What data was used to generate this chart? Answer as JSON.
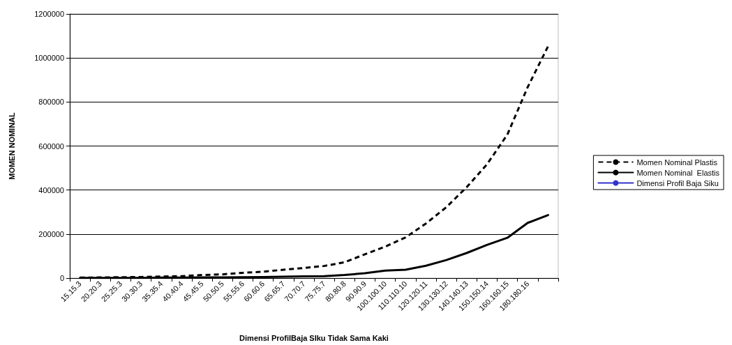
{
  "chart_data": {
    "type": "line",
    "xlabel": "Dimensi ProfilBaja SIku Tidak Sama Kaki",
    "ylabel": "MOMEN NOMINAL",
    "categories": [
      "15.15.3",
      "20.20.3",
      "25.25.3",
      "30.30.3",
      "35.35.4",
      "40.40.4",
      "45.45.5",
      "50.50.5",
      "55.55.6",
      "60.60.6",
      "65.65.7",
      "70.70.7",
      "75.75.7",
      "80.80.8",
      "90.90.9",
      "100.100.10",
      "110.110.10",
      "120.120.11",
      "130.130.12",
      "140.140.13",
      "150.150.14",
      "160.160.15",
      "180.180.16",
      null
    ],
    "series": [
      {
        "name": "Momen Nominal Plastis",
        "color": "#000000",
        "line_style": "dashed",
        "values": [
          2000,
          3000,
          4000,
          5000,
          7000,
          9000,
          14000,
          17000,
          24000,
          29000,
          38000,
          46000,
          55000,
          72000,
          108000,
          143000,
          185000,
          248000,
          322000,
          413000,
          517000,
          652000,
          868000,
          1053000
        ]
      },
      {
        "name": "Momen Nominal  Elastis",
        "color": "#000000",
        "line_style": "solid",
        "values": [
          1000,
          1000,
          1000,
          1000,
          2000,
          2000,
          3000,
          3000,
          4000,
          5000,
          6000,
          8000,
          9000,
          14000,
          22000,
          34000,
          38000,
          56000,
          82000,
          114000,
          151000,
          183000,
          251000,
          286000
        ]
      },
      {
        "name": "Dimensi Profil Baja Siku",
        "color": "#3333cc",
        "line_style": "solid",
        "values": [
          null,
          null,
          null,
          null,
          null,
          null,
          null,
          null,
          null,
          null,
          null,
          null,
          null,
          null,
          null,
          null,
          null,
          null,
          null,
          null,
          null,
          null,
          null,
          null
        ]
      }
    ],
    "ylim": [
      0,
      1200000
    ],
    "yticks": [
      0,
      200000,
      400000,
      600000,
      800000,
      1000000,
      1200000
    ],
    "grid": "y",
    "legend": "right",
    "marker": "none"
  }
}
